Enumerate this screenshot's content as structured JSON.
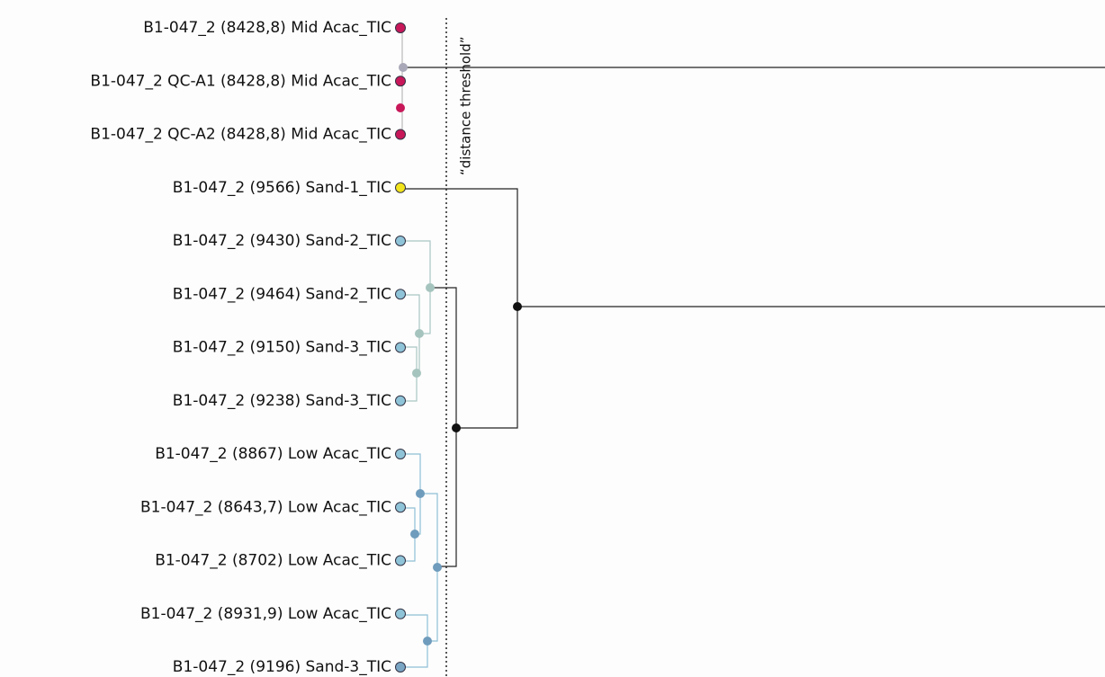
{
  "threshold_label": "“distance threshold”",
  "leaves": [
    {
      "label": "B1-047_2 (8428,8) Mid Acac_TIC",
      "color": "#c8185a"
    },
    {
      "label": "B1-047_2 QC-A1 (8428,8) Mid Acac_TIC",
      "color": "#c8185a"
    },
    {
      "label": "B1-047_2 QC-A2 (8428,8) Mid Acac_TIC",
      "color": "#c8185a"
    },
    {
      "label": "B1-047_2 (9566) Sand-1_TIC",
      "color": "#f2e41c"
    },
    {
      "label": "B1-047_2 (9430) Sand-2_TIC",
      "color": "#8fc3d8"
    },
    {
      "label": "B1-047_2 (9464) Sand-2_TIC",
      "color": "#8fc3d8"
    },
    {
      "label": "B1-047_2 (9150) Sand-3_TIC",
      "color": "#8fc3d8"
    },
    {
      "label": "B1-047_2 (9238) Sand-3_TIC",
      "color": "#8fc3d8"
    },
    {
      "label": "B1-047_2 (8867) Low Acac_TIC",
      "color": "#8fc3d8"
    },
    {
      "label": "B1-047_2 (8643,7) Low Acac_TIC",
      "color": "#8fc3d8"
    },
    {
      "label": "B1-047_2 (8702) Low Acac_TIC",
      "color": "#8fc3d8"
    },
    {
      "label": "B1-047_2 (8931,9) Low Acac_TIC",
      "color": "#8fc3d8"
    },
    {
      "label": "B1-047_2 (9196) Sand-3_TIC",
      "color": "#7aa6c4"
    }
  ]
}
